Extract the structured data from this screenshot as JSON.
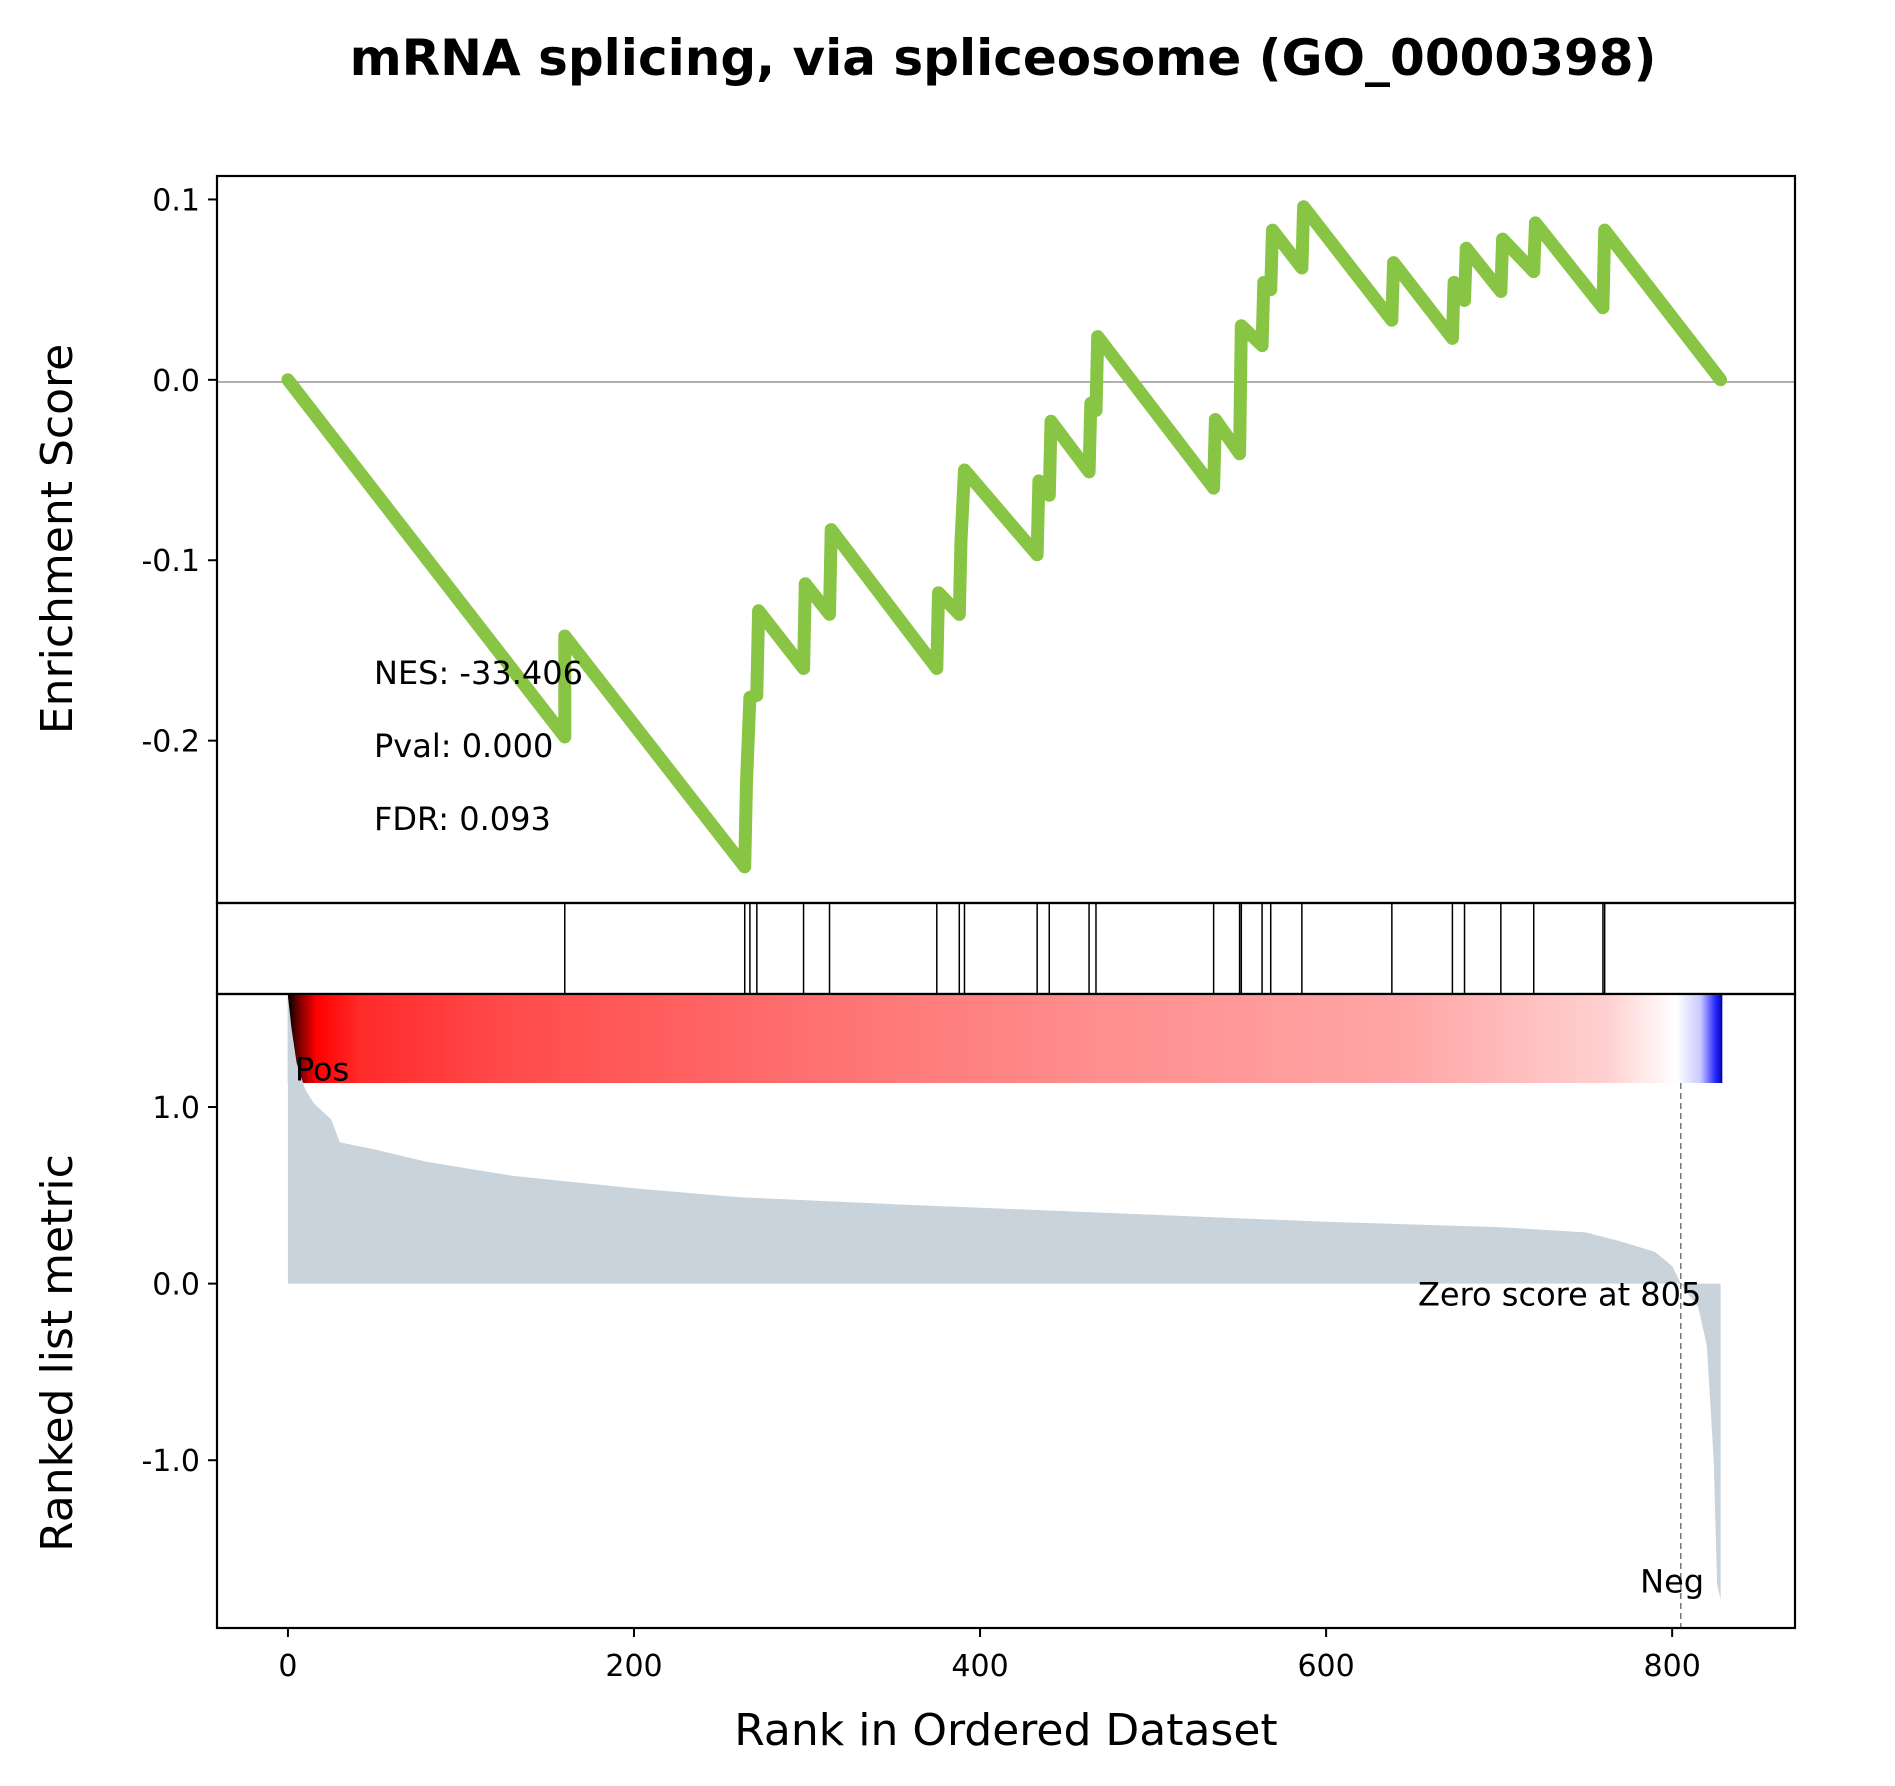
{
  "chart_data": {
    "type": "line",
    "title": "mRNA splicing, via spliceosome (GO_0000398)",
    "xlabel": "Rank in Ordered Dataset",
    "xlim": [
      -41,
      871
    ],
    "x_ticks": [
      "0",
      "200",
      "400",
      "600",
      "800"
    ],
    "x_tick_values": [
      0,
      200,
      400,
      600,
      800
    ],
    "line_color": "#88c544",
    "enrichment": {
      "ylabel": "Enrichment Score",
      "ylim": [
        -0.29,
        0.113
      ],
      "y_ticks": [
        "0.1",
        "0.0",
        "-0.1",
        "-0.2"
      ],
      "y_tick_values": [
        0.1,
        0.0,
        -0.1,
        -0.2
      ],
      "zero_line": true,
      "points": [
        [
          0,
          0.0
        ],
        [
          160,
          -0.198
        ],
        [
          160,
          -0.142
        ],
        [
          264,
          -0.27
        ],
        [
          265,
          -0.223
        ],
        [
          267,
          -0.176
        ],
        [
          271,
          -0.175
        ],
        [
          272,
          -0.128
        ],
        [
          298,
          -0.16
        ],
        [
          299,
          -0.113
        ],
        [
          313,
          -0.13
        ],
        [
          314,
          -0.083
        ],
        [
          375,
          -0.16
        ],
        [
          376,
          -0.118
        ],
        [
          388,
          -0.13
        ],
        [
          389,
          -0.089
        ],
        [
          391,
          -0.05
        ],
        [
          433,
          -0.097
        ],
        [
          434,
          -0.056
        ],
        [
          440,
          -0.064
        ],
        [
          441,
          -0.023
        ],
        [
          463,
          -0.051
        ],
        [
          464,
          -0.013
        ],
        [
          467,
          -0.017
        ],
        [
          468,
          0.024
        ],
        [
          535,
          -0.06
        ],
        [
          536,
          -0.022
        ],
        [
          550,
          -0.041
        ],
        [
          551,
          0.03
        ],
        [
          563,
          0.019
        ],
        [
          564,
          0.054
        ],
        [
          568,
          0.05
        ],
        [
          569,
          0.083
        ],
        [
          586,
          0.062
        ],
        [
          587,
          0.096
        ],
        [
          638,
          0.033
        ],
        [
          639,
          0.065
        ],
        [
          673,
          0.023
        ],
        [
          674,
          0.054
        ],
        [
          680,
          0.044
        ],
        [
          681,
          0.073
        ],
        [
          701,
          0.049
        ],
        [
          702,
          0.078
        ],
        [
          720,
          0.06
        ],
        [
          721,
          0.087
        ],
        [
          760,
          0.04
        ],
        [
          761,
          0.083
        ],
        [
          828,
          0.0
        ]
      ],
      "annotations": [
        "NES: -33.406",
        "Pval: 0.000",
        "FDR: 0.093"
      ]
    },
    "hits": [
      160,
      264,
      267,
      271,
      298,
      313,
      375,
      388,
      391,
      433,
      440,
      463,
      467,
      535,
      550,
      551,
      563,
      568,
      586,
      638,
      673,
      680,
      701,
      720,
      760,
      761
    ],
    "metric": {
      "ylabel": "Ranked list metric",
      "ylim": [
        -1.95,
        1.64
      ],
      "y_ticks": [
        "1.0",
        "0.0",
        "-1.0"
      ],
      "y_tick_values": [
        1.0,
        0.0,
        -1.0
      ],
      "fill_color": "#c9d3dc",
      "n_ranks": 829,
      "profile": [
        [
          0,
          1.63
        ],
        [
          2,
          1.45
        ],
        [
          5,
          1.25
        ],
        [
          10,
          1.1
        ],
        [
          15,
          1.02
        ],
        [
          25,
          0.93
        ],
        [
          30,
          0.8
        ],
        [
          50,
          0.76
        ],
        [
          80,
          0.69
        ],
        [
          130,
          0.61
        ],
        [
          200,
          0.54
        ],
        [
          260,
          0.49
        ],
        [
          350,
          0.45
        ],
        [
          400,
          0.43
        ],
        [
          500,
          0.39
        ],
        [
          600,
          0.35
        ],
        [
          700,
          0.32
        ],
        [
          750,
          0.29
        ],
        [
          770,
          0.24
        ],
        [
          790,
          0.18
        ],
        [
          800,
          0.1
        ],
        [
          805,
          0.0
        ],
        [
          810,
          -0.07
        ],
        [
          815,
          -0.13
        ],
        [
          820,
          -0.35
        ],
        [
          824,
          -1.0
        ],
        [
          826,
          -1.7
        ],
        [
          828,
          -1.79
        ]
      ],
      "zero_score_rank": 805,
      "zero_score_label": "Zero score at 805",
      "pos_label": "Pos",
      "neg_label": "Neg",
      "pos_color": "#ff0000",
      "neg_color": "#0000ff"
    }
  }
}
